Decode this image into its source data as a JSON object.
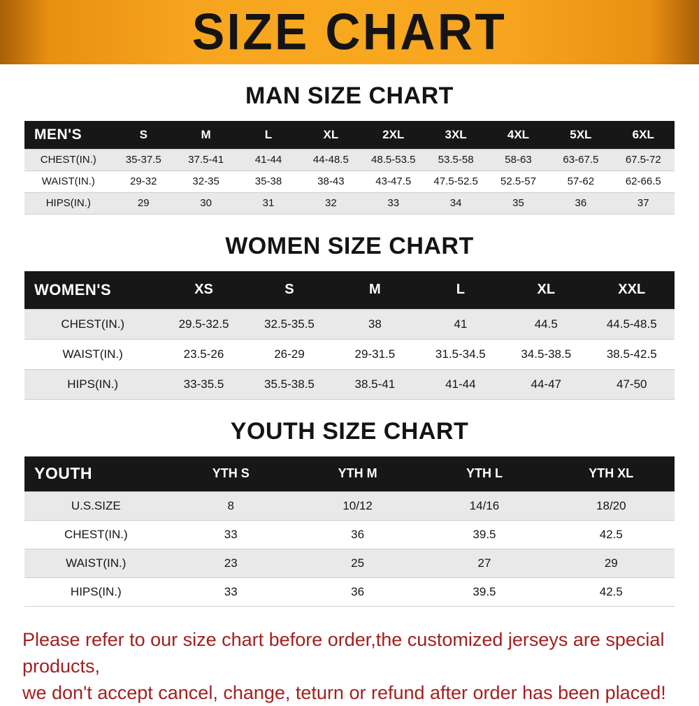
{
  "banner": {
    "title": "SIZE CHART"
  },
  "chart_data": [
    {
      "type": "table",
      "title": "MAN SIZE CHART",
      "header": [
        "MEN'S",
        "S",
        "M",
        "L",
        "XL",
        "2XL",
        "3XL",
        "4XL",
        "5XL",
        "6XL"
      ],
      "rows": [
        [
          "CHEST(IN.)",
          "35-37.5",
          "37.5-41",
          "41-44",
          "44-48.5",
          "48.5-53.5",
          "53.5-58",
          "58-63",
          "63-67.5",
          "67.5-72"
        ],
        [
          "WAIST(IN.)",
          "29-32",
          "32-35",
          "35-38",
          "38-43",
          "43-47.5",
          "47.5-52.5",
          "52.5-57",
          "57-62",
          "62-66.5"
        ],
        [
          "HIPS(IN.)",
          "29",
          "30",
          "31",
          "32",
          "33",
          "34",
          "35",
          "36",
          "37"
        ]
      ]
    },
    {
      "type": "table",
      "title": "WOMEN SIZE CHART",
      "header": [
        "WOMEN'S",
        "XS",
        "S",
        "M",
        "L",
        "XL",
        "XXL"
      ],
      "rows": [
        [
          "CHEST(IN.)",
          "29.5-32.5",
          "32.5-35.5",
          "38",
          "41",
          "44.5",
          "44.5-48.5"
        ],
        [
          "WAIST(IN.)",
          "23.5-26",
          "26-29",
          "29-31.5",
          "31.5-34.5",
          "34.5-38.5",
          "38.5-42.5"
        ],
        [
          "HIPS(IN.)",
          "33-35.5",
          "35.5-38.5",
          "38.5-41",
          "41-44",
          "44-47",
          "47-50"
        ]
      ]
    },
    {
      "type": "table",
      "title": "YOUTH SIZE CHART",
      "header": [
        "YOUTH",
        "YTH S",
        "YTH M",
        "YTH L",
        "YTH XL"
      ],
      "rows": [
        [
          "U.S.SIZE",
          "8",
          "10/12",
          "14/16",
          "18/20"
        ],
        [
          "CHEST(IN.)",
          "33",
          "36",
          "39.5",
          "42.5"
        ],
        [
          "WAIST(IN.)",
          "23",
          "25",
          "27",
          "29"
        ],
        [
          "HIPS(IN.)",
          "33",
          "36",
          "39.5",
          "42.5"
        ]
      ]
    }
  ],
  "footer": {
    "line1": "Please refer to our size chart before order,the customized jerseys are special products,",
    "line2": "we don't accept cancel, change, teturn or refund after order has been placed!"
  },
  "colors": {
    "banner_orange": "#f7a51f",
    "table_header_bg": "#171717",
    "row_stripe_gray": "#e9e9e9",
    "footer_red": "#a32020"
  }
}
